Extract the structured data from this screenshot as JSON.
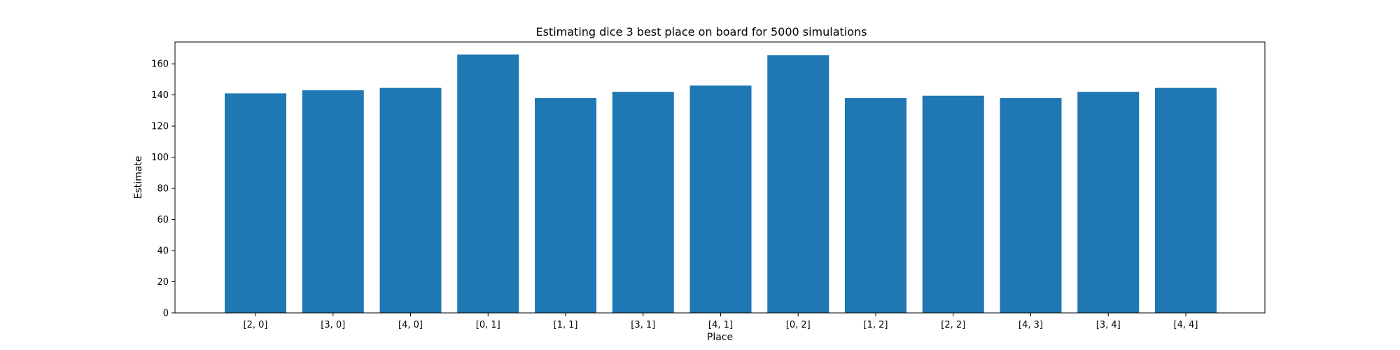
{
  "chart_data": {
    "type": "bar",
    "title": "Estimating dice 3 best place on board for 5000 simulations",
    "xlabel": "Place",
    "ylabel": "Estimate",
    "categories": [
      "[2, 0]",
      "[3, 0]",
      "[4, 0]",
      "[0, 1]",
      "[1, 1]",
      "[3, 1]",
      "[4, 1]",
      "[0, 2]",
      "[1, 2]",
      "[2, 2]",
      "[4, 3]",
      "[3, 4]",
      "[4, 4]"
    ],
    "values": [
      141,
      143,
      144.5,
      166,
      138,
      142,
      146,
      165.5,
      138,
      139.5,
      138,
      142,
      144.5
    ],
    "ylim": [
      0,
      174
    ],
    "yticks": [
      0,
      20,
      40,
      60,
      80,
      100,
      120,
      140,
      160
    ],
    "grid": false,
    "bar_color": "#1f77b4"
  }
}
